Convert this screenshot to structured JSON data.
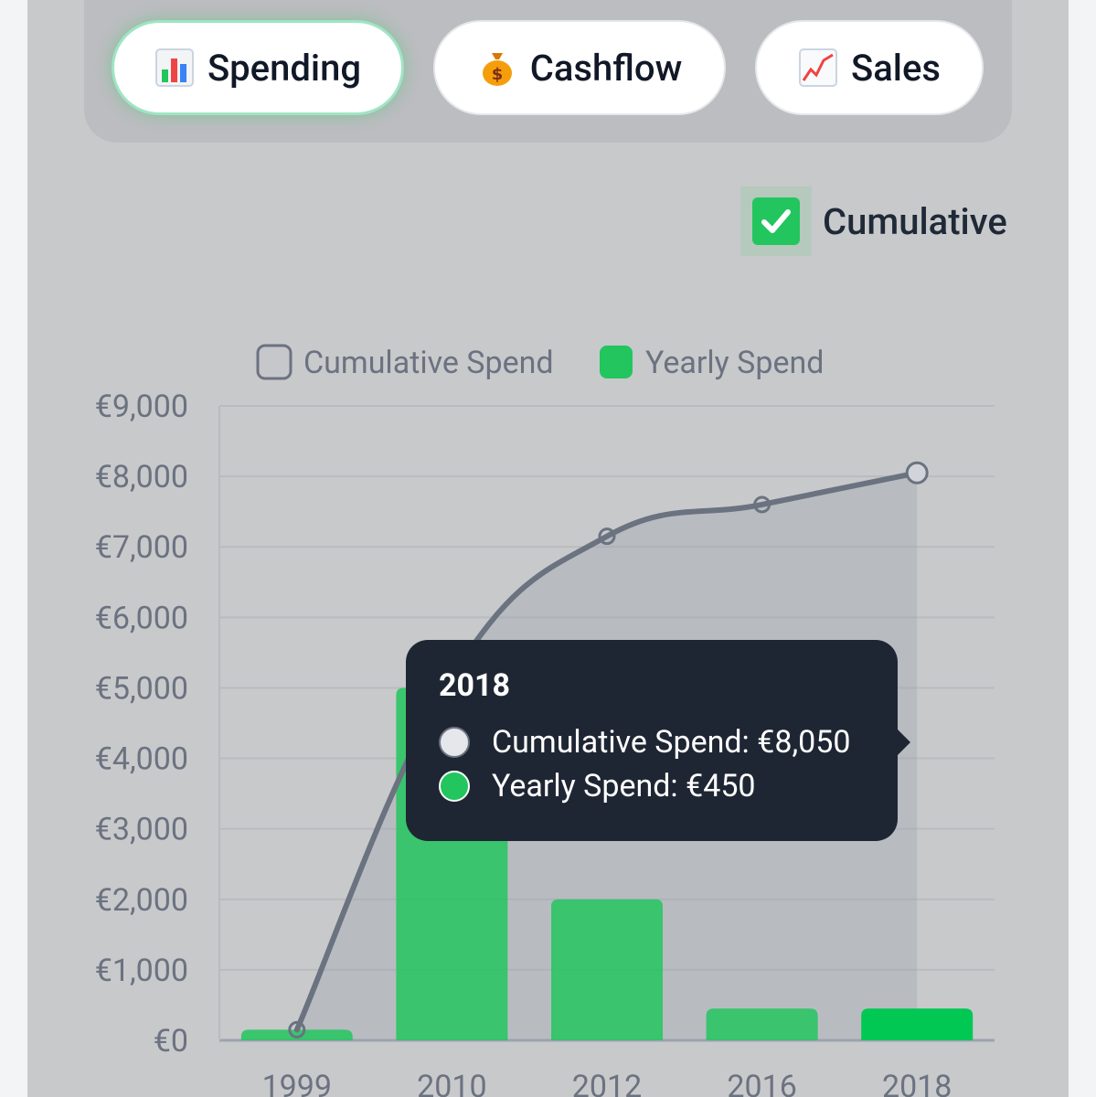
{
  "tabs": [
    {
      "icon": "bar-chart-icon",
      "label": "Spending",
      "active": true
    },
    {
      "icon": "money-bag-icon",
      "label": "Cashflow",
      "active": false
    },
    {
      "icon": "trend-up-icon",
      "label": "Sales",
      "active": false
    }
  ],
  "cumulative_toggle": {
    "label": "Cumulative",
    "checked": true
  },
  "colors": {
    "cumulative": "#6b7280",
    "yearly": "#22c55e",
    "tooltip_bg": "#1f2633",
    "panel_bg": "#c8c9cb"
  },
  "tooltip": {
    "title": "2018",
    "rows": [
      {
        "text": "Cumulative Spend: €8,050"
      },
      {
        "text": "Yearly Spend: €450"
      }
    ]
  },
  "chart_data": {
    "type": "bar",
    "categories": [
      "1999",
      "2010",
      "2012",
      "2016",
      "2018"
    ],
    "series": [
      {
        "name": "Cumulative Spend",
        "type": "line",
        "values": [
          150,
          5150,
          7150,
          7600,
          8050
        ]
      },
      {
        "name": "Yearly Spend",
        "type": "bar",
        "values": [
          150,
          5000,
          2000,
          450,
          450
        ]
      }
    ],
    "y_ticks": [
      "€0",
      "€1,000",
      "€2,000",
      "€3,000",
      "€4,000",
      "€5,000",
      "€6,000",
      "€7,000",
      "€8,000",
      "€9,000"
    ],
    "ylim": [
      0,
      9000
    ],
    "legend": {
      "position": "top"
    },
    "grid": true
  }
}
